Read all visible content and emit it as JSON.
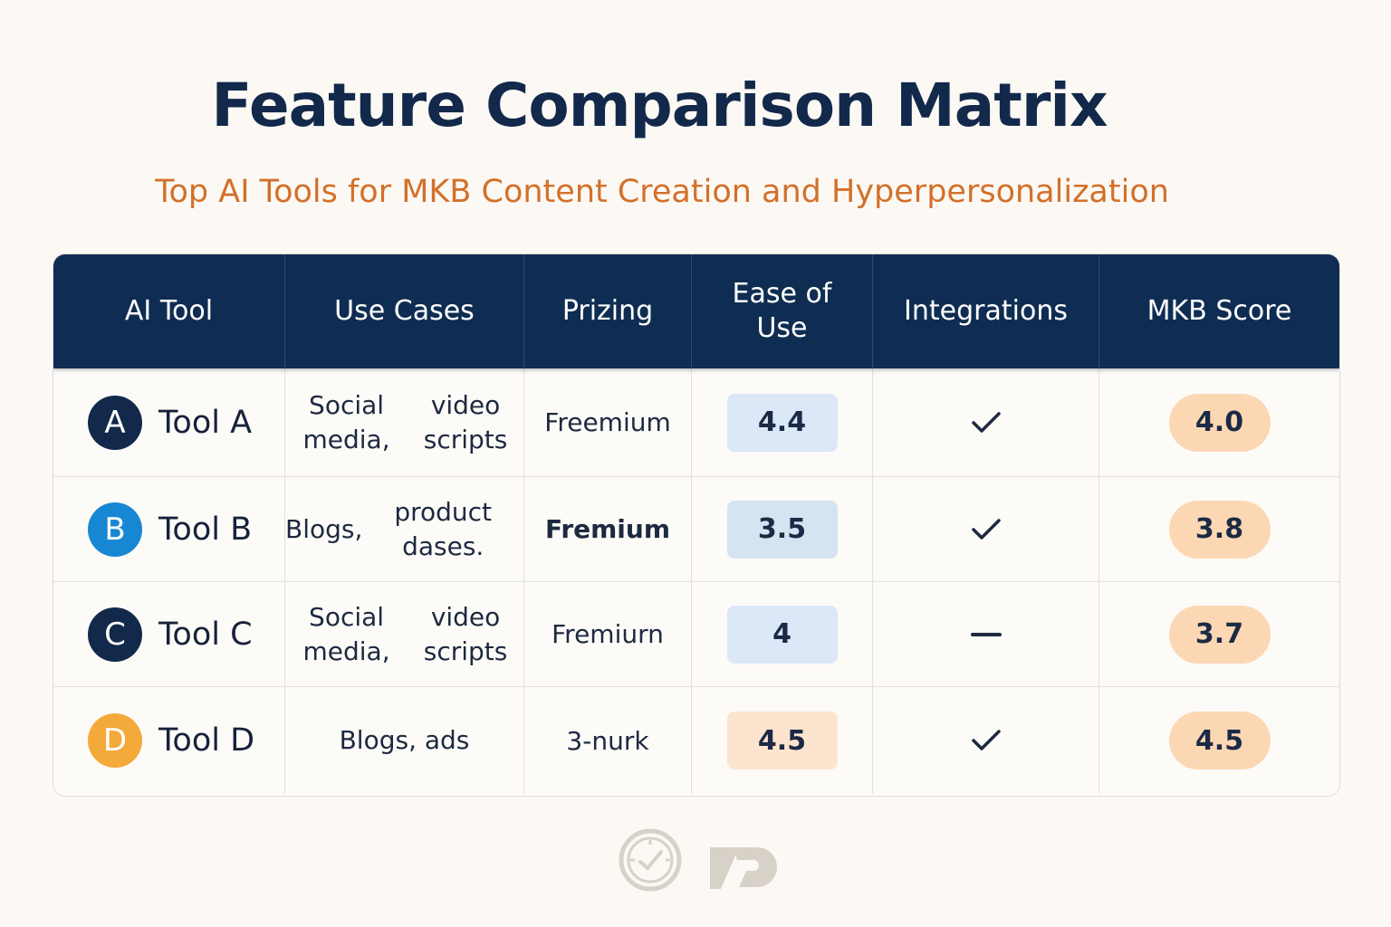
{
  "header": {
    "title": "Feature Comparison Matrix",
    "subtitle": "Top AI Tools for MKB Content Creation and Hyperpersonalization"
  },
  "table": {
    "columns": [
      "AI Tool",
      "Use Cases",
      "Prizing",
      "Ease of Use",
      "Integrations",
      "MKB Score"
    ],
    "rows": [
      {
        "letter": "A",
        "avatar_color": "#13294b",
        "name": "Tool A",
        "use_case_line1": "Social media,",
        "use_case_line2": "video scripts",
        "pricing": "Freemium",
        "pricing_bold": false,
        "ease": "4.4",
        "ease_color": "#dce8f7",
        "integration": "check-icon",
        "score": "4.0"
      },
      {
        "letter": "B",
        "avatar_color": "#1787d4",
        "name": "Tool B",
        "use_case_line1": "Blogs,",
        "use_case_line2": "product dases.",
        "pricing": "Fremium",
        "pricing_bold": true,
        "ease": "3.5",
        "ease_color": "#d6e3f1",
        "integration": "check-icon",
        "score": "3.8"
      },
      {
        "letter": "C",
        "avatar_color": "#13294b",
        "name": "Tool C",
        "use_case_line1": "Social media,",
        "use_case_line2": "video scripts",
        "pricing": "Fremiurn",
        "pricing_bold": false,
        "ease": "4",
        "ease_color": "#dce8f7",
        "integration": "dash-icon",
        "score": "3.7"
      },
      {
        "letter": "D",
        "avatar_color": "#f4a93b",
        "name": "Tool D",
        "use_case_line1": "Blogs, ads",
        "use_case_line2": "",
        "pricing": "3-nurk",
        "pricing_bold": false,
        "ease": "4.5",
        "ease_color": "#fde4cf",
        "integration": "check-icon",
        "score": "4.5"
      }
    ]
  },
  "colors": {
    "header_bg": "#0f2d52",
    "title": "#13294b",
    "subtitle": "#d3702a",
    "score_badge": "#fcd7b4"
  },
  "footer": {
    "icons": [
      "stopwatch-icon",
      "brand-logo-icon"
    ]
  }
}
